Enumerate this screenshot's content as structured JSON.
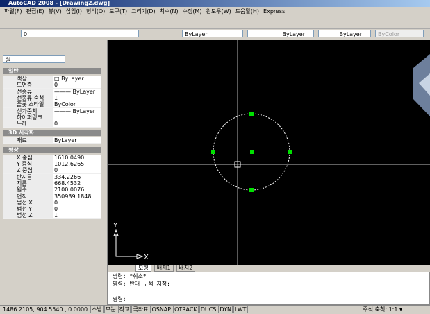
{
  "window": {
    "title": "AutoCAD 2008 - [Drawing2.dwg]"
  },
  "menu": [
    "파일(F)",
    "편집(E)",
    "뷰(V)",
    "삽입(I)",
    "형식(O)",
    "도구(T)",
    "그리기(D)",
    "치수(N)",
    "수정(M)",
    "윈도우(W)",
    "도움말(H)",
    "Express"
  ],
  "toolbar": {
    "layer": "0",
    "color": "ByLayer",
    "linetype": "ByLayer",
    "lineweight": "ByLayer",
    "plotstyle": "ByColor"
  },
  "properties": {
    "object": "원",
    "sections": [
      {
        "title": "일반",
        "rows": [
          [
            "색상",
            "□ ByLayer"
          ],
          [
            "도면층",
            "0"
          ],
          [
            "선종류",
            "——— ByLayer"
          ],
          [
            "선종류 축척",
            "1"
          ],
          [
            "플롯 스타일",
            "ByColor"
          ],
          [
            "선가중치",
            "——— ByLayer"
          ],
          [
            "하이퍼링크"
          ],
          [
            "두께",
            "0"
          ]
        ]
      },
      {
        "title": "3D 시각화",
        "rows": [
          [
            "재료",
            "ByLayer"
          ]
        ]
      },
      {
        "title": "형상",
        "rows": [
          [
            "X 중심",
            "1610.0490"
          ],
          [
            "Y 중심",
            "1012.6265"
          ],
          [
            "Z 중심",
            "0"
          ],
          [
            "반지름",
            "334.2266"
          ],
          [
            "지름",
            "668.4532"
          ],
          [
            "원주",
            "2100.0076"
          ],
          [
            "면적",
            "350939.1848"
          ],
          [
            "법선 X",
            "0"
          ],
          [
            "법선 Y",
            "0"
          ],
          [
            "법선 Z",
            "1"
          ]
        ]
      }
    ]
  },
  "drawing": {
    "ucs_y": "Y",
    "ucs_x": "X"
  },
  "tabs": [
    "모형",
    "배치1",
    "배치2"
  ],
  "command_lines": [
    "명령: *취소*",
    "명령: 반대 구석 지정:",
    "명령:"
  ],
  "status": {
    "coords": "1486.2105, 904.5540 , 0.0000",
    "toggles": [
      "스냅",
      "모눈",
      "직교",
      "극좌표",
      "OSNAP",
      "OTRACK",
      "DUCS",
      "DYN",
      "LWT"
    ],
    "annotation": "주석 축척: 1:1 ▾"
  }
}
